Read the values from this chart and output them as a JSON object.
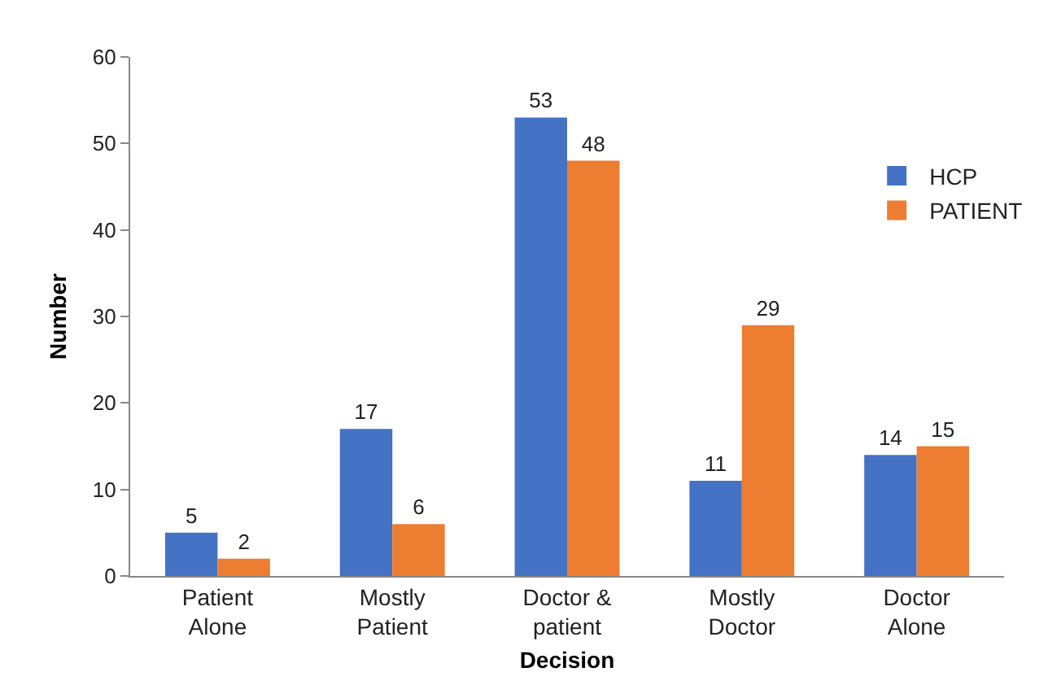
{
  "chart_data": {
    "type": "bar",
    "xlabel": "Decision",
    "ylabel": "Number",
    "categories": [
      "Patient Alone",
      "Mostly Patient",
      "Doctor & patient",
      "Mostly Doctor",
      "Doctor Alone"
    ],
    "series": [
      {
        "name": "HCP",
        "color": "#4472c4",
        "values": [
          5,
          17,
          53,
          11,
          14
        ]
      },
      {
        "name": "PATIENT",
        "color": "#ed7d31",
        "values": [
          2,
          6,
          48,
          29,
          15
        ]
      }
    ],
    "ylim": [
      0,
      60
    ],
    "yticks": [
      0,
      10,
      20,
      30,
      40,
      50,
      60
    ],
    "grid": false,
    "legend": "right",
    "data_labels": true
  }
}
